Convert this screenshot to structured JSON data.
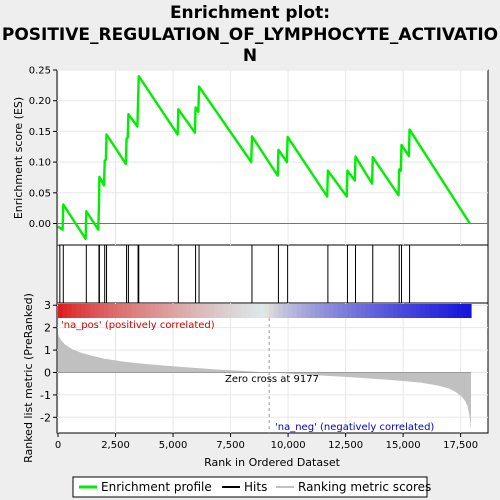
{
  "chart_data": {
    "type": "line",
    "title_lines": [
      "Enrichment plot:",
      "POSITIVE_REGULATION_OF_LYMPHOCYTE_ACTIVATIO",
      "N"
    ],
    "xlabel": "Rank in Ordered Dataset",
    "top_panel": {
      "ylabel": "Enrichment score (ES)",
      "ylim": [
        -0.035,
        0.25
      ],
      "yticks": [
        0.0,
        0.05,
        0.1,
        0.15,
        0.2,
        0.25
      ],
      "ytick_labels": [
        "0.00",
        "0.05",
        "0.10",
        "0.15",
        "0.20",
        "0.25"
      ],
      "series": [
        {
          "name": "Enrichment profile",
          "color": "#00ee00",
          "x": [
            0,
            200,
            230,
            1200,
            1230,
            1750,
            1780,
            1800,
            2000,
            2030,
            2080,
            2110,
            2950,
            2980,
            3030,
            3060,
            3450,
            3480,
            3510,
            5200,
            5230,
            5950,
            5980,
            6100,
            6130,
            8400,
            8430,
            9550,
            9580,
            9950,
            9980,
            11700,
            11730,
            12550,
            12580,
            12900,
            12930,
            13650,
            13680,
            14800,
            14830,
            14900,
            14930,
            15250,
            15280,
            17900
          ],
          "y": [
            -0.005,
            -0.01,
            0.031,
            -0.025,
            0.02,
            -0.01,
            0.03,
            0.076,
            0.062,
            0.102,
            0.104,
            0.145,
            0.097,
            0.138,
            0.14,
            0.178,
            0.158,
            0.2,
            0.24,
            0.145,
            0.186,
            0.148,
            0.189,
            0.182,
            0.223,
            0.1,
            0.142,
            0.078,
            0.12,
            0.1,
            0.141,
            0.044,
            0.086,
            0.044,
            0.086,
            0.07,
            0.109,
            0.065,
            0.108,
            0.046,
            0.088,
            0.086,
            0.128,
            0.11,
            0.153,
            0.0
          ]
        }
      ]
    },
    "hits": {
      "name": "Hits",
      "x": [
        80,
        230,
        1230,
        1780,
        1800,
        2030,
        2110,
        2980,
        3060,
        3480,
        3510,
        5230,
        5980,
        6130,
        8430,
        9580,
        9980,
        11730,
        12580,
        12930,
        13680,
        14830,
        14930,
        15280
      ]
    },
    "bottom_panel": {
      "ylabel": "Ranked list metric (PreRanked)",
      "ylim": [
        -2.7,
        3.1
      ],
      "yticks": [
        -2,
        -1,
        0,
        1,
        2,
        3
      ],
      "ytick_labels": [
        "-2",
        "-1",
        "0",
        "1",
        "2",
        "3"
      ],
      "series_name": "Ranking metric scores",
      "curve": {
        "x": [
          0,
          50,
          150,
          300,
          600,
          1000,
          1500,
          2000,
          3000,
          4000,
          5000,
          6000,
          7000,
          8000,
          9177,
          10000,
          11000,
          12000,
          13000,
          14000,
          15000,
          15800,
          16500,
          17000,
          17300,
          17550,
          17700,
          17800,
          17850,
          17900,
          17950
        ],
        "y": [
          1.72,
          1.6,
          1.42,
          1.25,
          1.05,
          0.88,
          0.74,
          0.62,
          0.46,
          0.36,
          0.28,
          0.2,
          0.13,
          0.07,
          0.0,
          -0.05,
          -0.11,
          -0.17,
          -0.23,
          -0.3,
          -0.38,
          -0.46,
          -0.58,
          -0.72,
          -0.88,
          -1.08,
          -1.28,
          -1.5,
          -1.75,
          -2.05,
          -2.55
        ]
      },
      "zero_cross_label": "Zero cross at 9177",
      "zero_cross": 9177,
      "pos_label": "'na_pos' (positively correlated)",
      "neg_label": "'na_neg' (negatively correlated)"
    },
    "xlim": [
      0,
      18000
    ],
    "xticks": [
      0,
      2500,
      5000,
      7500,
      10000,
      12500,
      15000,
      17500
    ],
    "xtick_labels": [
      "0",
      "2,500",
      "5,000",
      "7,500",
      "10,000",
      "12,500",
      "15,000",
      "17,500"
    ],
    "legend": {
      "placement": "bottom",
      "items": [
        {
          "label": "Enrichment profile",
          "color": "#00ee00"
        },
        {
          "label": "Hits",
          "color": "#000000"
        },
        {
          "label": "Ranking metric scores",
          "color": "#c0c0c0"
        }
      ]
    },
    "colors": {
      "pos_label": "#cc0000",
      "neg_label": "#0000cc",
      "grid": "#e8e8e8",
      "metric_fill": "#c0c0c0",
      "zero_cross": "#999999"
    }
  }
}
